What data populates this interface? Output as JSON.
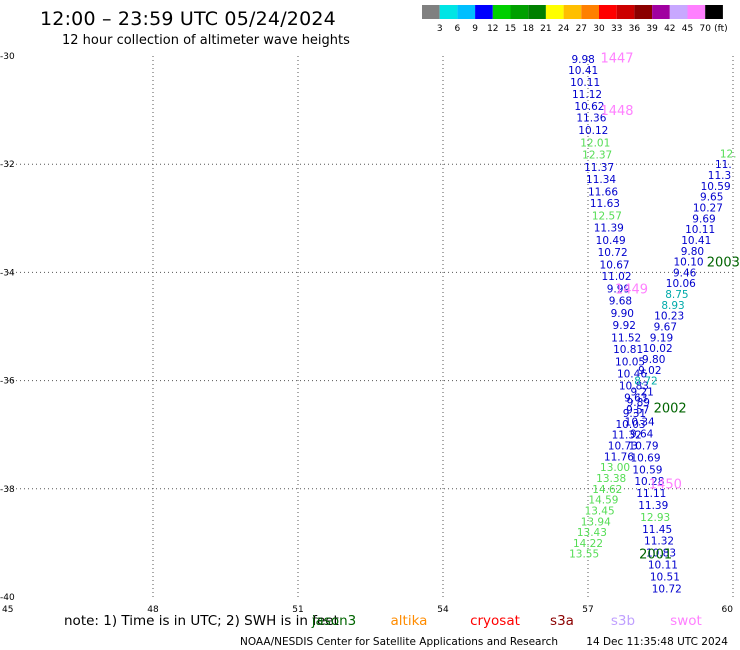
{
  "header": {
    "title": "12:00 – 23:59 UTC 05/24/2024",
    "subtitle": "12 hour collection of altimeter wave heights"
  },
  "colorbar": {
    "colors": [
      "#808080",
      "#00e5e5",
      "#00bfff",
      "#0000ff",
      "#00d000",
      "#00a000",
      "#008000",
      "#ffff00",
      "#ffbf00",
      "#ff8000",
      "#ff0000",
      "#cc0000",
      "#8b0000",
      "#a000a0",
      "#c8a8ff",
      "#ff80ff",
      "#000000"
    ],
    "labels": [
      "3",
      "6",
      "9",
      "12",
      "15",
      "18",
      "21",
      "24",
      "27",
      "30",
      "33",
      "36",
      "39",
      "42",
      "45",
      "70"
    ],
    "unit": "(ft)"
  },
  "footer": {
    "note": "note:  1) Time is in UTC; 2) SWH is in feet",
    "legend": [
      {
        "label": "jason3",
        "color": "#006400"
      },
      {
        "label": "altika",
        "color": "#ff8c00"
      },
      {
        "label": "cryosat",
        "color": "#ff0000"
      },
      {
        "label": "s3a",
        "color": "#8b0000"
      },
      {
        "label": "s3b",
        "color": "#c0a0ff"
      },
      {
        "label": "swot",
        "color": "#ff80ff"
      }
    ],
    "credit": "NOAA/NESDIS Center for Satellite Applications and Research",
    "timestamp": "14 Dec 11:35:48 UTC 2024"
  },
  "colors": {
    "lt12": "#0000cd",
    "12to15": "#55dd55",
    "lt9": "#00aaaa",
    "jason3": "#006400",
    "swot": "#ff80ff"
  },
  "chart_data": {
    "type": "scatter",
    "xlim": [
      45,
      60
    ],
    "ylim": [
      -40,
      -30
    ],
    "x_ticks": [
      "45",
      "48",
      "51",
      "54",
      "57",
      "60"
    ],
    "y_ticks": [
      "-30",
      "-32",
      "-34",
      "-36",
      "-38",
      "-40"
    ],
    "grid": true,
    "points": [
      {
        "x": 56.9,
        "y": -30.06,
        "label": "9.98",
        "band": "lt12"
      },
      {
        "x": 56.9,
        "y": -30.26,
        "label": "10.41",
        "band": "lt12"
      },
      {
        "x": 56.94,
        "y": -30.48,
        "label": "10.11",
        "band": "lt12"
      },
      {
        "x": 56.98,
        "y": -30.7,
        "label": "11.12",
        "band": "lt12"
      },
      {
        "x": 57.03,
        "y": -30.92,
        "label": "10.62",
        "band": "lt12"
      },
      {
        "x": 57.07,
        "y": -31.14,
        "label": "11.36",
        "band": "lt12"
      },
      {
        "x": 57.11,
        "y": -31.37,
        "label": "10.12",
        "band": "lt12"
      },
      {
        "x": 57.15,
        "y": -31.6,
        "label": "12.01",
        "band": "12to15"
      },
      {
        "x": 57.19,
        "y": -31.82,
        "label": "12.37",
        "band": "12to15"
      },
      {
        "x": 57.23,
        "y": -32.05,
        "label": "11.37",
        "band": "lt12"
      },
      {
        "x": 57.27,
        "y": -32.27,
        "label": "11.34",
        "band": "lt12"
      },
      {
        "x": 57.31,
        "y": -32.5,
        "label": "11.66",
        "band": "lt12"
      },
      {
        "x": 57.35,
        "y": -32.72,
        "label": "11.63",
        "band": "lt12"
      },
      {
        "x": 57.39,
        "y": -32.95,
        "label": "12.57",
        "band": "12to15"
      },
      {
        "x": 57.43,
        "y": -33.17,
        "label": "11.39",
        "band": "lt12"
      },
      {
        "x": 57.47,
        "y": -33.4,
        "label": "10.49",
        "band": "lt12"
      },
      {
        "x": 57.51,
        "y": -33.62,
        "label": "10.72",
        "band": "lt12"
      },
      {
        "x": 57.55,
        "y": -33.85,
        "label": "10.67",
        "band": "lt12"
      },
      {
        "x": 57.59,
        "y": -34.07,
        "label": "11.02",
        "band": "lt12"
      },
      {
        "x": 57.63,
        "y": -34.3,
        "label": "9.99",
        "band": "lt12"
      },
      {
        "x": 57.67,
        "y": -34.52,
        "label": "9.68",
        "band": "lt12"
      },
      {
        "x": 57.71,
        "y": -34.75,
        "label": "9.90",
        "band": "lt12"
      },
      {
        "x": 57.75,
        "y": -34.97,
        "label": "9.92",
        "band": "lt12"
      },
      {
        "x": 57.79,
        "y": -35.2,
        "label": "11.52",
        "band": "lt12"
      },
      {
        "x": 57.83,
        "y": -35.42,
        "label": "10.81",
        "band": "lt12"
      },
      {
        "x": 57.87,
        "y": -35.65,
        "label": "10.05",
        "band": "lt12"
      },
      {
        "x": 57.91,
        "y": -35.87,
        "label": "10.46",
        "band": "lt12"
      },
      {
        "x": 57.95,
        "y": -36.09,
        "label": "10.83",
        "band": "lt12"
      },
      {
        "x": 57.99,
        "y": -36.31,
        "label": "9.63",
        "band": "lt12"
      },
      {
        "x": 58.03,
        "y": -36.53,
        "label": "9.57",
        "band": "lt12"
      },
      {
        "x": 58.07,
        "y": -36.76,
        "label": "10.34",
        "band": "lt12"
      },
      {
        "x": 58.11,
        "y": -36.98,
        "label": "9.64",
        "band": "lt12"
      },
      {
        "x": 58.15,
        "y": -37.2,
        "label": "10.79",
        "band": "lt12"
      },
      {
        "x": 58.19,
        "y": -37.42,
        "label": "10.69",
        "band": "lt12"
      },
      {
        "x": 58.23,
        "y": -37.64,
        "label": "10.59",
        "band": "lt12"
      },
      {
        "x": 58.27,
        "y": -37.86,
        "label": "10.28",
        "band": "lt12"
      },
      {
        "x": 58.31,
        "y": -38.08,
        "label": "11.11",
        "band": "lt12"
      },
      {
        "x": 58.35,
        "y": -38.3,
        "label": "11.39",
        "band": "lt12"
      },
      {
        "x": 58.39,
        "y": -38.52,
        "label": "12.93",
        "band": "12to15"
      },
      {
        "x": 58.43,
        "y": -38.74,
        "label": "11.45",
        "band": "lt12"
      },
      {
        "x": 58.47,
        "y": -38.96,
        "label": "11.32",
        "band": "lt12"
      },
      {
        "x": 58.51,
        "y": -39.18,
        "label": "10.83",
        "band": "lt12"
      },
      {
        "x": 58.55,
        "y": -39.4,
        "label": "10.11",
        "band": "lt12"
      },
      {
        "x": 58.59,
        "y": -39.62,
        "label": "10.51",
        "band": "lt12"
      },
      {
        "x": 58.63,
        "y": -39.84,
        "label": "10.72",
        "band": "lt12"
      },
      {
        "x": 59.9,
        "y": -31.8,
        "label": "12.",
        "band": "12to15"
      },
      {
        "x": 59.8,
        "y": -32.0,
        "label": "11.",
        "band": "lt12"
      },
      {
        "x": 59.72,
        "y": -32.2,
        "label": "11.3",
        "band": "lt12"
      },
      {
        "x": 59.64,
        "y": -32.4,
        "label": "10.59",
        "band": "lt12"
      },
      {
        "x": 59.56,
        "y": -32.6,
        "label": "9.65",
        "band": "lt12"
      },
      {
        "x": 59.48,
        "y": -32.8,
        "label": "10.27",
        "band": "lt12"
      },
      {
        "x": 59.4,
        "y": -33.0,
        "label": "9.69",
        "band": "lt12"
      },
      {
        "x": 59.32,
        "y": -33.2,
        "label": "10.11",
        "band": "lt12"
      },
      {
        "x": 59.24,
        "y": -33.4,
        "label": "10.41",
        "band": "lt12"
      },
      {
        "x": 59.16,
        "y": -33.6,
        "label": "9.80",
        "band": "lt12"
      },
      {
        "x": 59.08,
        "y": -33.8,
        "label": "10.10",
        "band": "lt12"
      },
      {
        "x": 59.0,
        "y": -34.0,
        "label": "9.46",
        "band": "lt12"
      },
      {
        "x": 58.92,
        "y": -34.2,
        "label": "10.06",
        "band": "lt12"
      },
      {
        "x": 58.84,
        "y": -34.4,
        "label": "8.75",
        "band": "lt9"
      },
      {
        "x": 58.76,
        "y": -34.6,
        "label": "8.93",
        "band": "lt9"
      },
      {
        "x": 58.68,
        "y": -34.8,
        "label": "10.23",
        "band": "lt12"
      },
      {
        "x": 58.6,
        "y": -35.0,
        "label": "9.67",
        "band": "lt12"
      },
      {
        "x": 58.52,
        "y": -35.2,
        "label": "9.19",
        "band": "lt12"
      },
      {
        "x": 58.44,
        "y": -35.4,
        "label": "10.02",
        "band": "lt12"
      },
      {
        "x": 58.36,
        "y": -35.6,
        "label": "9.80",
        "band": "lt12"
      },
      {
        "x": 58.28,
        "y": -35.8,
        "label": "9.02",
        "band": "lt12"
      },
      {
        "x": 58.2,
        "y": -36.0,
        "label": "8.72",
        "band": "lt9"
      },
      {
        "x": 58.12,
        "y": -36.2,
        "label": "9.21",
        "band": "lt12"
      },
      {
        "x": 58.04,
        "y": -36.4,
        "label": "9.89",
        "band": "lt12"
      },
      {
        "x": 57.96,
        "y": -36.6,
        "label": "9.31",
        "band": "lt12"
      },
      {
        "x": 57.88,
        "y": -36.8,
        "label": "10.03",
        "band": "lt12"
      },
      {
        "x": 57.8,
        "y": -37.0,
        "label": "11.32",
        "band": "lt12"
      },
      {
        "x": 57.72,
        "y": -37.2,
        "label": "10.73",
        "band": "lt12"
      },
      {
        "x": 57.64,
        "y": -37.4,
        "label": "11.76",
        "band": "lt12"
      },
      {
        "x": 57.56,
        "y": -37.6,
        "label": "13.00",
        "band": "12to15"
      },
      {
        "x": 57.48,
        "y": -37.8,
        "label": "13.38",
        "band": "12to15"
      },
      {
        "x": 57.4,
        "y": -38.0,
        "label": "14.62",
        "band": "12to15"
      },
      {
        "x": 57.32,
        "y": -38.2,
        "label": "14.59",
        "band": "12to15"
      },
      {
        "x": 57.24,
        "y": -38.4,
        "label": "13.45",
        "band": "12to15"
      },
      {
        "x": 57.16,
        "y": -38.6,
        "label": "13.94",
        "band": "12to15"
      },
      {
        "x": 57.08,
        "y": -38.8,
        "label": "13.43",
        "band": "12to15"
      },
      {
        "x": 57.0,
        "y": -39.0,
        "label": "14.22",
        "band": "12to15"
      },
      {
        "x": 56.92,
        "y": -39.2,
        "label": "13.55",
        "band": "12to15"
      }
    ],
    "annotations": [
      {
        "x": 57.6,
        "y": -30.03,
        "text": "1447",
        "sat": "swot"
      },
      {
        "x": 57.6,
        "y": -31.0,
        "text": "1448",
        "sat": "swot"
      },
      {
        "x": 57.9,
        "y": -34.3,
        "text": "1449",
        "sat": "swot"
      },
      {
        "x": 58.6,
        "y": -37.9,
        "text": "1450",
        "sat": "swot"
      },
      {
        "x": 59.8,
        "y": -33.8,
        "text": "2003",
        "sat": "jason3"
      },
      {
        "x": 58.7,
        "y": -36.5,
        "text": "2002",
        "sat": "jason3"
      },
      {
        "x": 58.4,
        "y": -39.2,
        "text": "2001",
        "sat": "jason3"
      }
    ]
  }
}
